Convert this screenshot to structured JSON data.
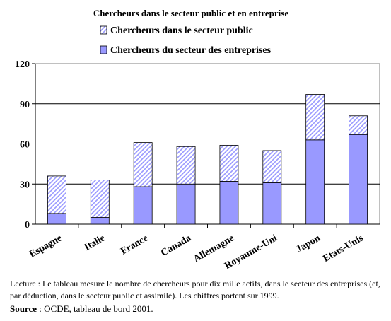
{
  "chart_data": {
    "type": "bar",
    "stacked": true,
    "title": "Chercheurs dans le secteur public et en entreprise",
    "categories": [
      "Espagne",
      "Italie",
      "France",
      "Canada",
      "Allemagne",
      "Royaume-Uni",
      "Japon",
      "Etats-Unis"
    ],
    "series": [
      {
        "name": "Chercheurs du secteur des entreprises",
        "values": [
          8,
          5,
          28,
          30,
          32,
          31,
          63,
          67
        ],
        "color": "#9999ff",
        "pattern": "solid"
      },
      {
        "name": "Chercheurs dans le secteur public",
        "values": [
          28,
          28,
          33,
          28,
          27,
          24,
          34,
          14
        ],
        "color": "#9999ff",
        "pattern": "hatched"
      }
    ],
    "legend_order": [
      1,
      0
    ],
    "legend_position": "top",
    "ylim": [
      0,
      120
    ],
    "yticks": [
      0,
      30,
      60,
      90,
      120
    ],
    "grid": true
  },
  "caption": "Lecture : Le tableau mesure le nombre de chercheurs pour dix mille actifs, dans le secteur des entreprises (et, par déduction, dans le secteur public et assimilé). Les chiffres portent sur 1999.",
  "source": {
    "label": "Source",
    "text": " : OCDE, tableau de bord 2001."
  }
}
